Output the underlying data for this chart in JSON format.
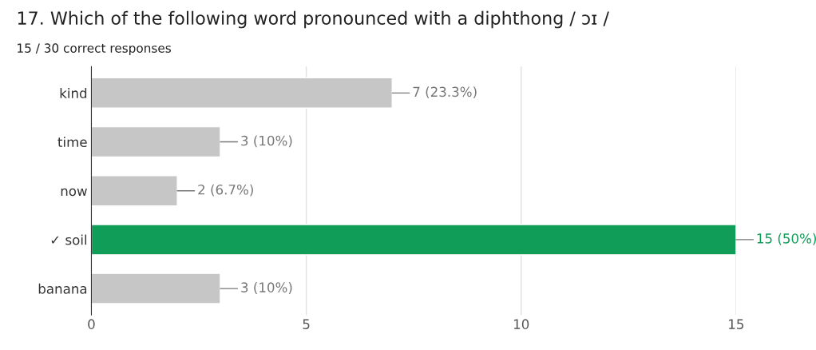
{
  "chart_data": {
    "type": "bar",
    "orientation": "horizontal",
    "title": "17. Which of the following word pronounced with a diphthong / ɔɪ /",
    "subtitle": "15 / 30 correct responses",
    "categories": [
      "kind",
      "time",
      "now",
      "✓ soil",
      "banana"
    ],
    "values": [
      7,
      3,
      2,
      15,
      3
    ],
    "colors": [
      "#c6c6c6",
      "#c6c6c6",
      "#c6c6c6",
      "#0f9d58",
      "#c6c6c6"
    ],
    "value_labels": [
      "7 (23.3%)",
      "3 (10%)",
      "2 (6.7%)",
      "15 (50%)",
      "3 (10%)"
    ],
    "xlim": [
      0,
      15
    ],
    "xticks": [
      0,
      5,
      10,
      15
    ],
    "grid": "x"
  }
}
